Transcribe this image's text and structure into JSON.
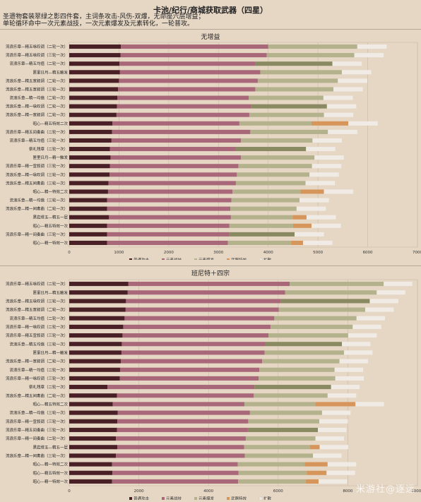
{
  "header": {
    "title": "卡池/纪行/商城获取武器（四星）",
    "desc_line1": "圣遗物套装翠绿之影四件套，主词条攻击-风伤-双爆，无命座六层增益；",
    "desc_line2": "单轮循环命中一次元素战技，一次元素爆发及元素转化，一轮普攻。"
  },
  "colors": {
    "normal_attack": "#4a2027",
    "skill": "#a8687a",
    "burst": "#b3b28c",
    "weapon_effect": "#d6955a",
    "swirl": "#f1ebe6",
    "olive_segment": "#8a8a62",
    "background": "#e6d7c5"
  },
  "watermark": "米游社@逐远",
  "chart_data": [
    {
      "type": "bar",
      "orientation": "horizontal",
      "stacked": true,
      "title": "无增益",
      "xlim": [
        0,
        7000
      ],
      "xticks": [
        0,
        1000,
        2000,
        3000,
        4000,
        5000,
        6000,
        7000
      ],
      "grid": true,
      "legend_position": "bottom",
      "series_names": [
        "普通攻击",
        "元素战技",
        "元素爆发",
        "武器特效",
        "扩散"
      ],
      "categories": [
        "流浪乐章—精五咏叹调（二轮一次）",
        "流浪乐章—精五咏叹调（三轮一次）",
        "流浪乐章—精五均值（二轮一次）",
        "匣里日月—精五触发",
        "流浪乐章—精五宣叙调（二轮一次）",
        "流浪乐章—精五宣叙调（三轮一次）",
        "流浪乐章—精一均值（二轮一次）",
        "流浪乐章—精一咏叹调（二轮一次）",
        "流浪乐章—精一宣叙调（二轮一次）",
        "昭心—精五特效二次",
        "流浪乐章—精五间奏曲（二轮一次）",
        "流浪乐章—精五均值（三轮一次）",
        "祭礼残章（二轮一次）",
        "匣里日月—精一触发",
        "流浪乐章—精一宣叙调（三轮一次）",
        "流浪乐章—精一咏叹调（三轮一次）",
        "流浪乐章—精五间奏曲（三轮一次）",
        "昭心—精一特效二次",
        "流浪乐章—精一均值（三轮一次）",
        "流浪乐章—精一间奏曲（二轮一次）",
        "黑岩绯玉—精五一层",
        "昭心—精五特效一次",
        "流浪乐章—精一间奏曲（三轮一次）",
        "昭心—精一特效一次"
      ],
      "values": [
        [
          1040,
          2960,
          1790,
          0,
          590
        ],
        [
          1030,
          2940,
          1760,
          0,
          590
        ],
        [
          1010,
          2730,
          1550,
          0,
          590
        ],
        [
          1020,
          2820,
          1640,
          0,
          590
        ],
        [
          1000,
          2790,
          1610,
          0,
          590
        ],
        [
          980,
          2760,
          1570,
          0,
          590
        ],
        [
          970,
          2640,
          1500,
          0,
          590
        ],
        [
          960,
          2690,
          1530,
          0,
          590
        ],
        [
          950,
          2670,
          1500,
          0,
          590
        ],
        [
          870,
          2550,
          1450,
          740,
          590
        ],
        [
          860,
          2780,
          1560,
          0,
          590
        ],
        [
          850,
          2600,
          1440,
          0,
          590
        ],
        [
          820,
          2530,
          1410,
          0,
          590
        ],
        [
          830,
          2620,
          1480,
          0,
          590
        ],
        [
          820,
          2580,
          1480,
          0,
          590
        ],
        [
          810,
          2560,
          1460,
          0,
          590
        ],
        [
          790,
          2560,
          1400,
          0,
          590
        ],
        [
          780,
          2500,
          1370,
          470,
          590
        ],
        [
          760,
          2500,
          1370,
          0,
          590
        ],
        [
          760,
          2480,
          1330,
          0,
          590
        ],
        [
          800,
          2450,
          1240,
          280,
          590
        ],
        [
          760,
          2460,
          1280,
          370,
          590
        ],
        [
          760,
          2460,
          1310,
          0,
          590
        ],
        [
          760,
          2430,
          1270,
          240,
          590
        ]
      ]
    },
    {
      "type": "bar",
      "orientation": "horizontal",
      "stacked": true,
      "title": "班尼特＋四宗",
      "xlim": [
        0,
        10000
      ],
      "xticks": [
        0,
        2000,
        4000,
        6000,
        8000,
        10000
      ],
      "grid": true,
      "legend_position": "bottom",
      "series_names": [
        "普通攻击",
        "元素战技",
        "元素爆发",
        "武器特效",
        "扩散"
      ],
      "categories": [
        "流浪乐章—精五咏叹调（二轮一次）",
        "匣里日月—精五触发",
        "流浪乐章—精五咏叹调（三轮一次）",
        "流浪乐章—精五宣叙调（二轮一次）",
        "流浪乐章—精五均值（二轮一次）",
        "流浪乐章—精一咏叹调（二轮一次）",
        "流浪乐章—精五宣叙调（三轮一次）",
        "流浪乐章—精五均值（三轮一次）",
        "匣里日月—精一触发",
        "流浪乐章—精一宣叙调（二轮一次）",
        "流浪乐章—精一均值（二轮一次）",
        "流浪乐章—精一咏叹调（三轮一次）",
        "祭礼残章（二轮一次）",
        "流浪乐章—精五间奏曲（二轮一次）",
        "昭心—精五特效二次",
        "流浪乐章—精一均值（三轮一次）",
        "流浪乐章—精一宣叙调（三轮一次）",
        "流浪乐章—精五间奏曲（三轮一次）",
        "流浪乐章—精一间奏曲（二轮一次）",
        "黑岩绯玉—精五一层",
        "流浪乐章—精一间奏曲（三轮一次）",
        "昭心—精一特效二次",
        "昭心—精五特效一次",
        "昭心—精一特效一次"
      ],
      "values": [
        [
          1700,
          4630,
          2700,
          0,
          820
        ],
        [
          1680,
          4520,
          2630,
          0,
          820
        ],
        [
          1630,
          4450,
          2550,
          0,
          820
        ],
        [
          1620,
          4400,
          2480,
          0,
          820
        ],
        [
          1590,
          4300,
          2360,
          0,
          820
        ],
        [
          1550,
          4230,
          2360,
          0,
          820
        ],
        [
          1530,
          4190,
          2290,
          0,
          820
        ],
        [
          1510,
          4120,
          2200,
          0,
          820
        ],
        [
          1500,
          4110,
          2280,
          0,
          820
        ],
        [
          1480,
          4060,
          2220,
          0,
          820
        ],
        [
          1460,
          4000,
          2160,
          0,
          820
        ],
        [
          1450,
          3990,
          2200,
          0,
          820
        ],
        [
          1100,
          4220,
          2200,
          0,
          820
        ],
        [
          1370,
          3930,
          2120,
          0,
          820
        ],
        [
          1250,
          3780,
          2040,
          1150,
          820
        ],
        [
          1390,
          3800,
          2070,
          0,
          820
        ],
        [
          1380,
          3760,
          2040,
          0,
          820
        ],
        [
          1370,
          3760,
          2010,
          0,
          820
        ],
        [
          1340,
          3730,
          2000,
          0,
          820
        ],
        [
          1380,
          3640,
          1890,
          280,
          820
        ],
        [
          1340,
          3700,
          1960,
          0,
          820
        ],
        [
          1230,
          3610,
          1920,
          660,
          820
        ],
        [
          1240,
          3620,
          1960,
          570,
          820
        ],
        [
          1230,
          3620,
          1940,
          370,
          820
        ]
      ]
    }
  ]
}
